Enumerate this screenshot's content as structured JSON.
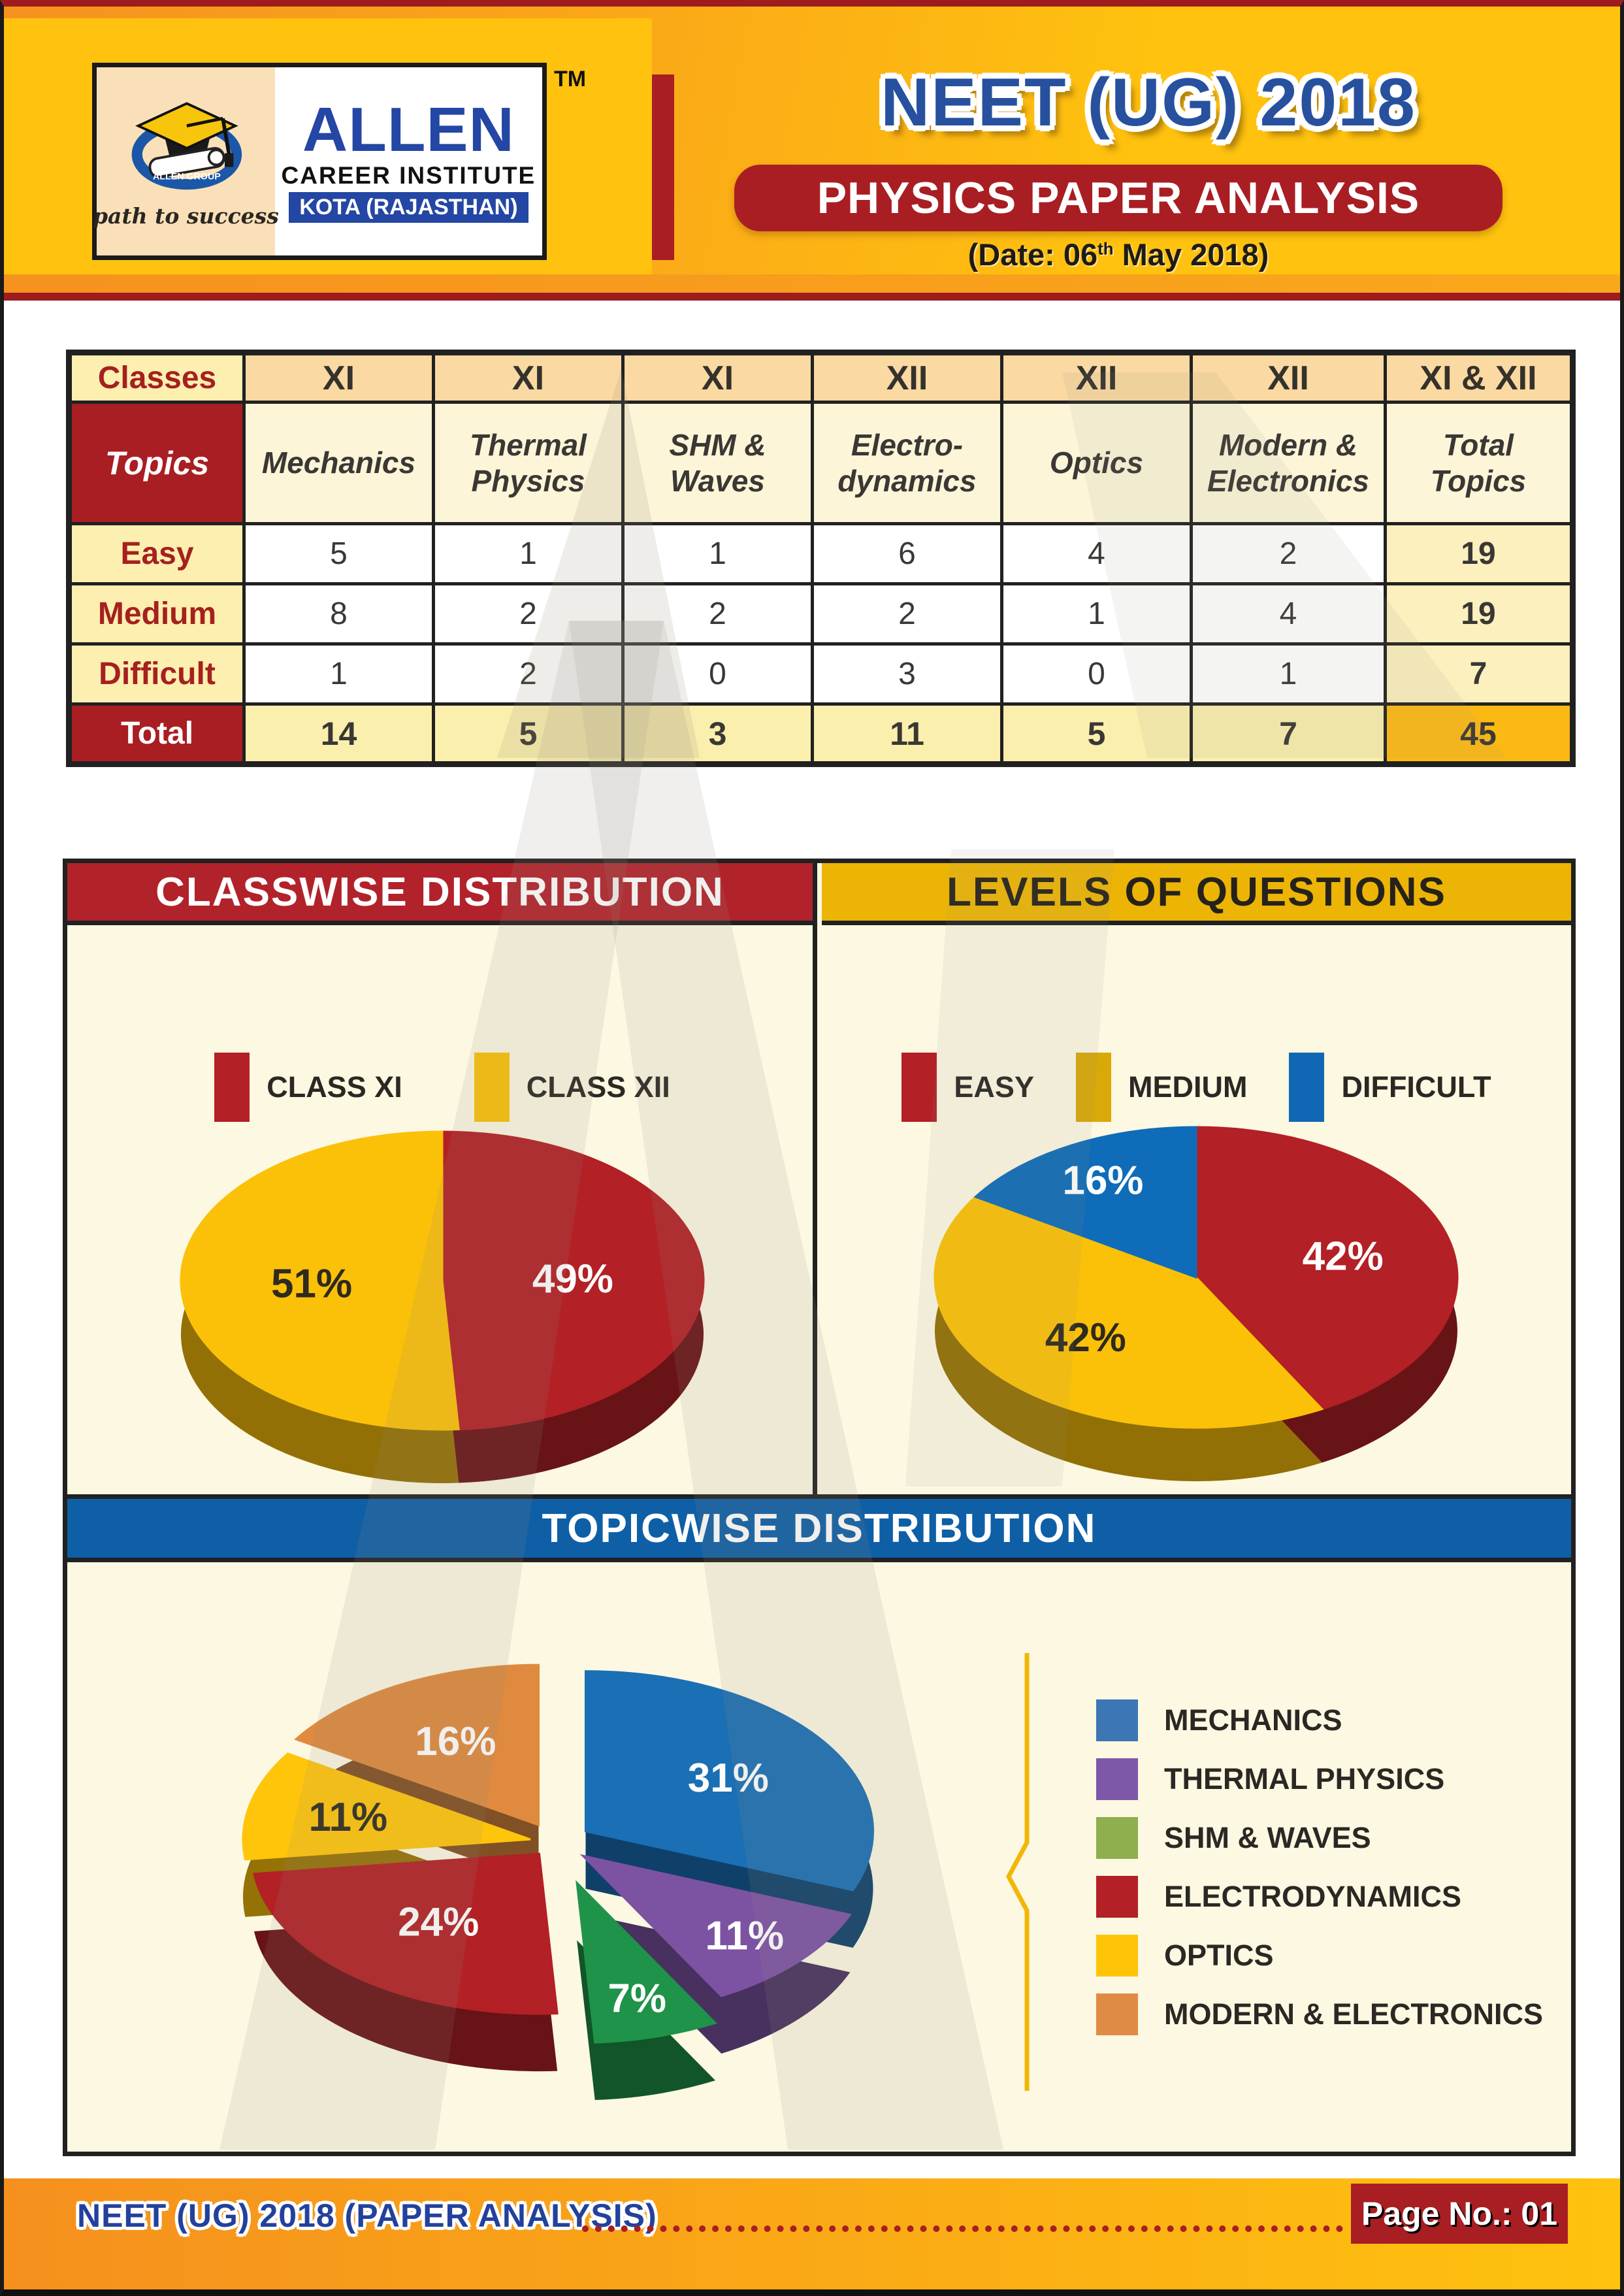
{
  "header": {
    "tm": "TM",
    "logo": {
      "brand": "ALLEN",
      "institute": "CAREER INSTITUTE",
      "location": "KOTA (RAJASTHAN)",
      "slogan": "path to success",
      "ring_text": "ALLEN GROUP"
    },
    "title": "NEET (UG) 2018",
    "subtitle": "PHYSICS PAPER ANALYSIS",
    "date": {
      "prefix": "(Date: 06",
      "sup": "th",
      "suffix": " May 2018)"
    }
  },
  "table": {
    "classes_label": "Classes",
    "topics_label": "Topics",
    "class_headers": [
      "XI",
      "XI",
      "XI",
      "XII",
      "XII",
      "XII",
      "XI & XII"
    ],
    "topic_headers": [
      "Mechanics",
      "Thermal Physics",
      "SHM & Waves",
      "Electro-dynamics",
      "Optics",
      "Modern & Electronics",
      "Total Topics"
    ],
    "rows": [
      {
        "label": "Easy",
        "values": [
          5,
          1,
          1,
          6,
          4,
          2,
          19
        ]
      },
      {
        "label": "Medium",
        "values": [
          8,
          2,
          2,
          2,
          1,
          4,
          19
        ]
      },
      {
        "label": "Difficult",
        "values": [
          1,
          2,
          0,
          3,
          0,
          1,
          7
        ]
      },
      {
        "label": "Total",
        "values": [
          14,
          5,
          3,
          11,
          5,
          7,
          45
        ]
      }
    ]
  },
  "sections": {
    "classwise_title": "CLASSWISE DISTRIBUTION",
    "levels_title": "LEVELS OF QUESTIONS",
    "topicwise_title": "TOPICWISE DISTRIBUTION"
  },
  "chart_data": [
    {
      "id": "classwise",
      "type": "pie",
      "title": "CLASSWISE DISTRIBUTION",
      "categories": [
        "CLASS XI",
        "CLASS XII"
      ],
      "values": [
        49,
        51
      ],
      "unit": "%",
      "colors": [
        "#B32025",
        "#FBC108"
      ],
      "label_colors": [
        "#FFFFFF",
        "#2E2A20"
      ],
      "legend_colors": [
        "#B32025",
        "#FBC108"
      ],
      "legend_position": "top",
      "style": "3d-pie"
    },
    {
      "id": "levels",
      "type": "pie",
      "title": "LEVELS OF QUESTIONS",
      "categories": [
        "EASY",
        "MEDIUM",
        "DIFFICULT"
      ],
      "values": [
        42,
        42,
        16
      ],
      "unit": "%",
      "colors": [
        "#B32025",
        "#FBC108",
        "#0F6CB8"
      ],
      "label_colors": [
        "#FFFFFF",
        "#2E2A20",
        "#FFFFFF"
      ],
      "legend_colors": [
        "#B32025",
        "#D8A908",
        "#1068B4"
      ],
      "legend_position": "top",
      "style": "3d-pie"
    },
    {
      "id": "topicwise",
      "type": "pie",
      "title": "TOPICWISE DISTRIBUTION",
      "categories": [
        "MECHANICS",
        "THERMAL PHYSICS",
        "SHM & WAVES",
        "ELECTRODYNAMICS",
        "OPTICS",
        "MODERN & ELECTRONICS"
      ],
      "values": [
        31,
        11,
        7,
        24,
        11,
        16
      ],
      "unit": "%",
      "colors": [
        "#1A6FB5",
        "#7C52A3",
        "#1F9349",
        "#B32025",
        "#FFC50A",
        "#DF8A3E"
      ],
      "label_colors": [
        "#FFFFFF",
        "#FFFFFF",
        "#FFFFFF",
        "#FFFFFF",
        "#2E2A20",
        "#FFFFFF"
      ],
      "legend_colors": [
        "#3C76B4",
        "#7F57A8",
        "#8FAE4E",
        "#B32025",
        "#FFC408",
        "#E08B44"
      ],
      "legend_position": "right",
      "style": "3d-pie-exploded"
    }
  ],
  "footer": {
    "left_text": "NEET (UG) 2018 (PAPER ANALYSIS)",
    "page_label": "Page No.: 01"
  },
  "colors": {
    "accent_red": "#A91E23",
    "accent_gold": "#FFC20E",
    "accent_blue": "#0E5FA6",
    "banner_gold": "#ECB506",
    "cream_bg": "#FCF8E2"
  }
}
